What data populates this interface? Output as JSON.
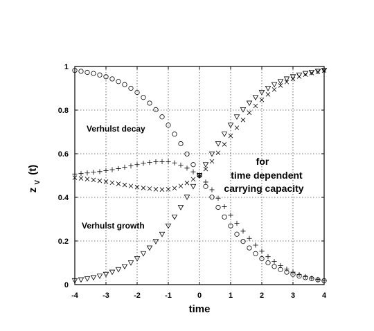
{
  "chart_data": {
    "type": "scatter",
    "xlabel": "time",
    "ylabel_main": "z",
    "ylabel_sub": "V",
    "ylabel_tail": "(t)",
    "xlim": [
      -4,
      4
    ],
    "ylim": [
      0,
      1
    ],
    "grid": true,
    "x_ticks": [
      -4,
      -3,
      -2,
      -1,
      0,
      1,
      2,
      3,
      4
    ],
    "y_ticks": [
      0,
      0.2,
      0.4,
      0.6,
      0.8,
      1
    ],
    "x_tick_labels": [
      "-4",
      "-3",
      "-2",
      "-1",
      "0",
      "1",
      "2",
      "3",
      "4"
    ],
    "y_tick_labels": [
      "0",
      "0.2",
      "0.4",
      "0.6",
      "0.8",
      "1"
    ],
    "annotations": {
      "decay": "Verhulst decay",
      "growth": "Verhulst growth",
      "note_line1": "for",
      "note_line2": "time dependent",
      "note_line3": "carrying capacity"
    },
    "series": [
      {
        "marker": "circle",
        "x": [
          -4.0,
          -3.8,
          -3.6,
          -3.4,
          -3.2,
          -3.0,
          -2.8,
          -2.6,
          -2.4,
          -2.2,
          -2.0,
          -1.8,
          -1.6,
          -1.4,
          -1.2,
          -1.0,
          -0.8,
          -0.6,
          -0.4,
          -0.2,
          0.0,
          0.2,
          0.4,
          0.6,
          0.8,
          1.0,
          1.2,
          1.4,
          1.6,
          1.8,
          2.0,
          2.2,
          2.4,
          2.6,
          2.8,
          3.0,
          3.2,
          3.4,
          3.6,
          3.8,
          4.0
        ],
        "y": [
          0.982,
          0.978,
          0.973,
          0.968,
          0.961,
          0.953,
          0.943,
          0.931,
          0.917,
          0.9,
          0.881,
          0.858,
          0.832,
          0.802,
          0.769,
          0.731,
          0.69,
          0.646,
          0.599,
          0.55,
          0.5,
          0.45,
          0.401,
          0.354,
          0.31,
          0.269,
          0.231,
          0.198,
          0.168,
          0.142,
          0.119,
          0.1,
          0.083,
          0.069,
          0.057,
          0.047,
          0.039,
          0.032,
          0.027,
          0.022,
          0.018
        ]
      },
      {
        "marker": "triangle-down",
        "x": [
          -4.0,
          -3.8,
          -3.6,
          -3.4,
          -3.2,
          -3.0,
          -2.8,
          -2.6,
          -2.4,
          -2.2,
          -2.0,
          -1.8,
          -1.6,
          -1.4,
          -1.2,
          -1.0,
          -0.8,
          -0.6,
          -0.4,
          -0.2,
          0.0,
          0.2,
          0.4,
          0.6,
          0.8,
          1.0,
          1.2,
          1.4,
          1.6,
          1.8,
          2.0,
          2.2,
          2.4,
          2.6,
          2.8,
          3.0,
          3.2,
          3.4,
          3.6,
          3.8,
          4.0
        ],
        "y": [
          0.018,
          0.022,
          0.027,
          0.032,
          0.039,
          0.047,
          0.057,
          0.069,
          0.083,
          0.1,
          0.119,
          0.142,
          0.168,
          0.198,
          0.231,
          0.269,
          0.31,
          0.354,
          0.401,
          0.45,
          0.5,
          0.55,
          0.599,
          0.646,
          0.69,
          0.731,
          0.769,
          0.802,
          0.832,
          0.858,
          0.881,
          0.9,
          0.917,
          0.931,
          0.943,
          0.953,
          0.961,
          0.968,
          0.973,
          0.978,
          0.982
        ]
      },
      {
        "marker": "plus",
        "x": [
          -4.0,
          -3.8,
          -3.6,
          -3.4,
          -3.2,
          -3.0,
          -2.8,
          -2.6,
          -2.4,
          -2.2,
          -2.0,
          -1.8,
          -1.6,
          -1.4,
          -1.2,
          -1.0,
          -0.8,
          -0.6,
          -0.4,
          -0.2,
          0.0,
          0.2,
          0.4,
          0.6,
          0.8,
          1.0,
          1.2,
          1.4,
          1.6,
          1.8,
          2.0,
          2.2,
          2.4,
          2.6,
          2.8,
          3.0,
          3.2,
          3.4,
          3.6,
          3.8,
          4.0
        ],
        "y": [
          0.507,
          0.509,
          0.512,
          0.515,
          0.518,
          0.522,
          0.527,
          0.532,
          0.538,
          0.544,
          0.55,
          0.556,
          0.56,
          0.563,
          0.564,
          0.563,
          0.558,
          0.548,
          0.534,
          0.517,
          0.497,
          0.47,
          0.435,
          0.396,
          0.357,
          0.318,
          0.281,
          0.245,
          0.212,
          0.181,
          0.153,
          0.128,
          0.106,
          0.087,
          0.071,
          0.057,
          0.046,
          0.037,
          0.03,
          0.024,
          0.019
        ]
      },
      {
        "marker": "cross",
        "x": [
          -4.0,
          -3.8,
          -3.6,
          -3.4,
          -3.2,
          -3.0,
          -2.8,
          -2.6,
          -2.4,
          -2.2,
          -2.0,
          -1.8,
          -1.6,
          -1.4,
          -1.2,
          -1.0,
          -0.8,
          -0.6,
          -0.4,
          -0.2,
          0.0,
          0.2,
          0.4,
          0.6,
          0.8,
          1.0,
          1.2,
          1.4,
          1.6,
          1.8,
          2.0,
          2.2,
          2.4,
          2.6,
          2.8,
          3.0,
          3.2,
          3.4,
          3.6,
          3.8,
          4.0
        ],
        "y": [
          0.49,
          0.487,
          0.484,
          0.48,
          0.476,
          0.472,
          0.467,
          0.462,
          0.457,
          0.452,
          0.447,
          0.443,
          0.44,
          0.437,
          0.436,
          0.437,
          0.442,
          0.452,
          0.466,
          0.483,
          0.503,
          0.53,
          0.565,
          0.604,
          0.643,
          0.682,
          0.719,
          0.755,
          0.788,
          0.819,
          0.847,
          0.872,
          0.894,
          0.913,
          0.929,
          0.943,
          0.954,
          0.963,
          0.97,
          0.976,
          0.981
        ]
      }
    ]
  }
}
